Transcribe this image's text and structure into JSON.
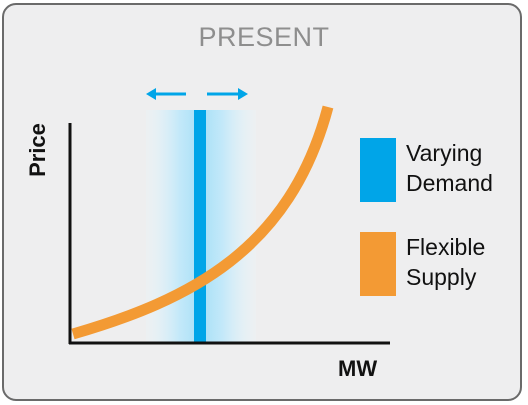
{
  "panel": {
    "title": "PRESENT"
  },
  "axes": {
    "ylabel": "Price",
    "xlabel": "MW"
  },
  "legend": {
    "items": [
      {
        "label": "Varying Demand",
        "color": "#00a5e8"
      },
      {
        "label": "Flexible Supply",
        "color": "#f39a34"
      }
    ]
  },
  "colors": {
    "demand": "#00a5e8",
    "demand_glow": "#cdeefb",
    "supply": "#f39a34",
    "arrow": "#00a5e8",
    "axis": "#111111",
    "title": "#8e8e8e",
    "panel_bg": "#eeeeef",
    "panel_border": "#6a6a6a"
  },
  "icons": {
    "left_arrow": "arrow-left-icon",
    "right_arrow": "arrow-right-icon"
  }
}
